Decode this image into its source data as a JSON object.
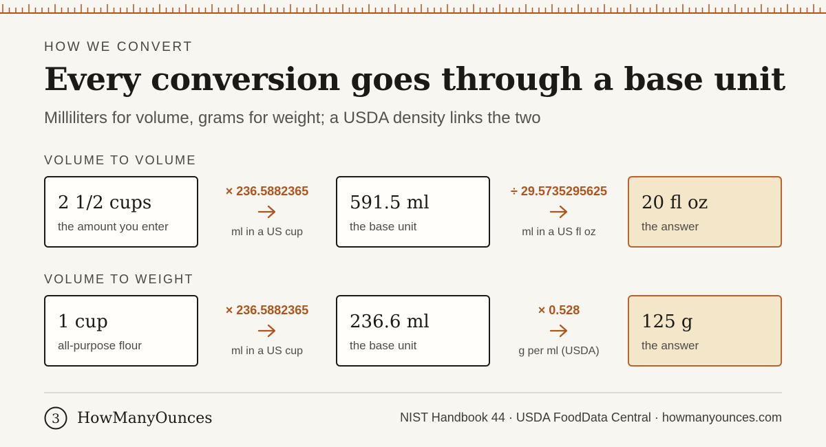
{
  "header": {
    "eyebrow": "HOW WE CONVERT",
    "title": "Every conversion goes through a base unit",
    "subtitle": "Milliliters for volume, grams for weight; a USDA density links the two"
  },
  "sections": [
    {
      "label": "VOLUME TO VOLUME",
      "input": {
        "value": "2 1/2 cups",
        "caption": "the amount you enter"
      },
      "step1": {
        "factor": "× 236.5882365",
        "note": "ml in a US cup"
      },
      "base": {
        "value": "591.5 ml",
        "caption": "the base unit"
      },
      "step2": {
        "factor": "÷ 29.5735295625",
        "note": "ml in a US fl oz"
      },
      "answer": {
        "value": "20 fl oz",
        "caption": "the answer"
      }
    },
    {
      "label": "VOLUME TO WEIGHT",
      "input": {
        "value": "1 cup",
        "caption": "all-purpose flour"
      },
      "step1": {
        "factor": "× 236.5882365",
        "note": "ml in a US cup"
      },
      "base": {
        "value": "236.6 ml",
        "caption": "the base unit"
      },
      "step2": {
        "factor": "× 0.528",
        "note": "g per ml (USDA)"
      },
      "answer": {
        "value": "125 g",
        "caption": "the answer"
      }
    }
  ],
  "footer": {
    "logo_glyph": "3",
    "brand": "HowManyOunces",
    "sources": "NIST Handbook 44 · USDA FoodData Central · howmanyounces.com"
  },
  "colors": {
    "background": "#f8f6f1",
    "accent": "#b0541f",
    "answer_fill": "#f4e6c8",
    "answer_border": "#b8642e",
    "ink": "#1c1a17"
  },
  "icons": [
    "ruler-ticks",
    "arrow-right-icon",
    "logo-icon"
  ]
}
